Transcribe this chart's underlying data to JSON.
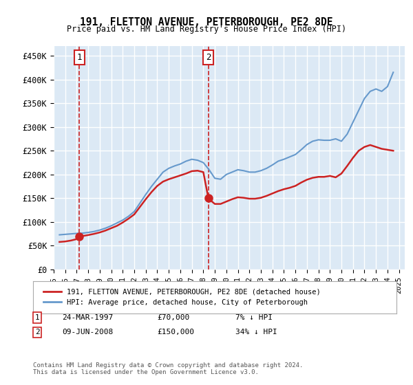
{
  "title": "191, FLETTON AVENUE, PETERBOROUGH, PE2 8DE",
  "subtitle": "Price paid vs. HM Land Registry's House Price Index (HPI)",
  "ylabel_ticks": [
    "£0",
    "£50K",
    "£100K",
    "£150K",
    "£200K",
    "£250K",
    "£300K",
    "£350K",
    "£400K",
    "£450K"
  ],
  "ytick_values": [
    0,
    50000,
    100000,
    150000,
    200000,
    250000,
    300000,
    350000,
    400000,
    450000
  ],
  "ylim": [
    0,
    470000
  ],
  "xlim_start": 1995.0,
  "xlim_end": 2025.5,
  "background_color": "#dce9f5",
  "plot_bg_color": "#dce9f5",
  "grid_color": "#ffffff",
  "sale1": {
    "date_num": 1997.23,
    "price": 70000,
    "label": "1"
  },
  "sale2": {
    "date_num": 2008.44,
    "price": 150000,
    "label": "2"
  },
  "hpi_color": "#6699cc",
  "price_color": "#cc2222",
  "legend_house_label": "191, FLETTON AVENUE, PETERBOROUGH, PE2 8DE (detached house)",
  "legend_hpi_label": "HPI: Average price, detached house, City of Peterborough",
  "table_rows": [
    {
      "num": "1",
      "date": "24-MAR-1997",
      "price": "£70,000",
      "pct": "7% ↓ HPI"
    },
    {
      "num": "2",
      "date": "09-JUN-2008",
      "price": "£150,000",
      "pct": "34% ↓ HPI"
    }
  ],
  "footer": "Contains HM Land Registry data © Crown copyright and database right 2024.\nThis data is licensed under the Open Government Licence v3.0.",
  "hpi_data": {
    "years": [
      1995.5,
      1996.0,
      1996.5,
      1997.0,
      1997.5,
      1998.0,
      1998.5,
      1999.0,
      1999.5,
      2000.0,
      2000.5,
      2001.0,
      2001.5,
      2002.0,
      2002.5,
      2003.0,
      2003.5,
      2004.0,
      2004.5,
      2005.0,
      2005.5,
      2006.0,
      2006.5,
      2007.0,
      2007.5,
      2008.0,
      2008.5,
      2009.0,
      2009.5,
      2010.0,
      2010.5,
      2011.0,
      2011.5,
      2012.0,
      2012.5,
      2013.0,
      2013.5,
      2014.0,
      2014.5,
      2015.0,
      2015.5,
      2016.0,
      2016.5,
      2017.0,
      2017.5,
      2018.0,
      2018.5,
      2019.0,
      2019.5,
      2020.0,
      2020.5,
      2021.0,
      2021.5,
      2022.0,
      2022.5,
      2023.0,
      2023.5,
      2024.0,
      2024.5
    ],
    "values": [
      73000,
      74000,
      75000,
      76000,
      76500,
      78000,
      80000,
      83000,
      87000,
      92000,
      98000,
      104000,
      112000,
      122000,
      140000,
      158000,
      175000,
      190000,
      205000,
      213000,
      218000,
      222000,
      228000,
      232000,
      230000,
      225000,
      210000,
      192000,
      190000,
      200000,
      205000,
      210000,
      208000,
      205000,
      205000,
      208000,
      213000,
      220000,
      228000,
      232000,
      237000,
      242000,
      252000,
      263000,
      270000,
      273000,
      272000,
      272000,
      275000,
      270000,
      285000,
      310000,
      335000,
      360000,
      375000,
      380000,
      375000,
      385000,
      415000
    ]
  },
  "price_data": {
    "years": [
      1995.5,
      1996.0,
      1996.5,
      1997.0,
      1997.23,
      1997.5,
      1998.0,
      1998.5,
      1999.0,
      1999.5,
      2000.0,
      2000.5,
      2001.0,
      2001.5,
      2002.0,
      2002.5,
      2003.0,
      2003.5,
      2004.0,
      2004.5,
      2005.0,
      2005.5,
      2006.0,
      2006.5,
      2007.0,
      2007.5,
      2008.0,
      2008.44,
      2008.5,
      2009.0,
      2009.5,
      2010.0,
      2010.5,
      2011.0,
      2011.5,
      2012.0,
      2012.5,
      2013.0,
      2013.5,
      2014.0,
      2014.5,
      2015.0,
      2015.5,
      2016.0,
      2016.5,
      2017.0,
      2017.5,
      2018.0,
      2018.5,
      2019.0,
      2019.5,
      2020.0,
      2020.5,
      2021.0,
      2021.5,
      2022.0,
      2022.5,
      2023.0,
      2023.5,
      2024.0,
      2024.5
    ],
    "values": [
      58000,
      59000,
      61000,
      64000,
      70000,
      70500,
      72500,
      75000,
      78000,
      82000,
      87000,
      92000,
      99000,
      107000,
      116000,
      132000,
      148000,
      163000,
      176000,
      185000,
      190000,
      194000,
      198000,
      202000,
      207000,
      208000,
      205000,
      150000,
      148000,
      138000,
      138000,
      143000,
      148000,
      152000,
      151000,
      149000,
      149000,
      151000,
      155000,
      160000,
      165000,
      169000,
      172000,
      176000,
      183000,
      189000,
      193000,
      195000,
      195000,
      197000,
      194000,
      202000,
      218000,
      235000,
      250000,
      258000,
      262000,
      258000,
      254000,
      252000,
      250000
    ]
  }
}
